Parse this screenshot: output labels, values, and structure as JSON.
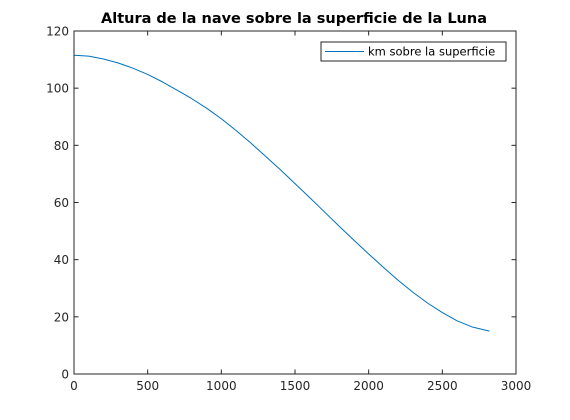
{
  "chart_data": {
    "type": "line",
    "title": "Altura de la nave sobre la superficie de la Luna",
    "xlabel": "",
    "ylabel": "",
    "xlim": [
      0,
      3000
    ],
    "ylim": [
      0,
      120
    ],
    "xticks": [
      0,
      500,
      1000,
      1500,
      2000,
      2500,
      3000
    ],
    "yticks": [
      0,
      20,
      40,
      60,
      80,
      100,
      120
    ],
    "xtick_labels": [
      "0",
      "500",
      "1000",
      "1500",
      "2000",
      "2500",
      "3000"
    ],
    "ytick_labels": [
      "0",
      "20",
      "40",
      "60",
      "80",
      "100",
      "120"
    ],
    "grid": false,
    "legend_position": "top-right",
    "series": [
      {
        "name": "km sobre la superficie",
        "color": "#0072BD",
        "x": [
          0,
          100,
          200,
          300,
          400,
          500,
          600,
          700,
          800,
          900,
          1000,
          1100,
          1200,
          1300,
          1400,
          1500,
          1600,
          1700,
          1800,
          1900,
          2000,
          2100,
          2200,
          2300,
          2400,
          2500,
          2600,
          2700,
          2820
        ],
        "y": [
          111.5,
          111.2,
          110.2,
          108.8,
          107.0,
          104.8,
          102.2,
          99.3,
          96.3,
          93.0,
          89.3,
          85.2,
          80.8,
          76.2,
          71.5,
          66.6,
          61.7,
          56.7,
          51.7,
          46.8,
          42.0,
          37.3,
          32.8,
          28.6,
          24.8,
          21.5,
          18.6,
          16.5,
          15.0
        ]
      }
    ]
  }
}
